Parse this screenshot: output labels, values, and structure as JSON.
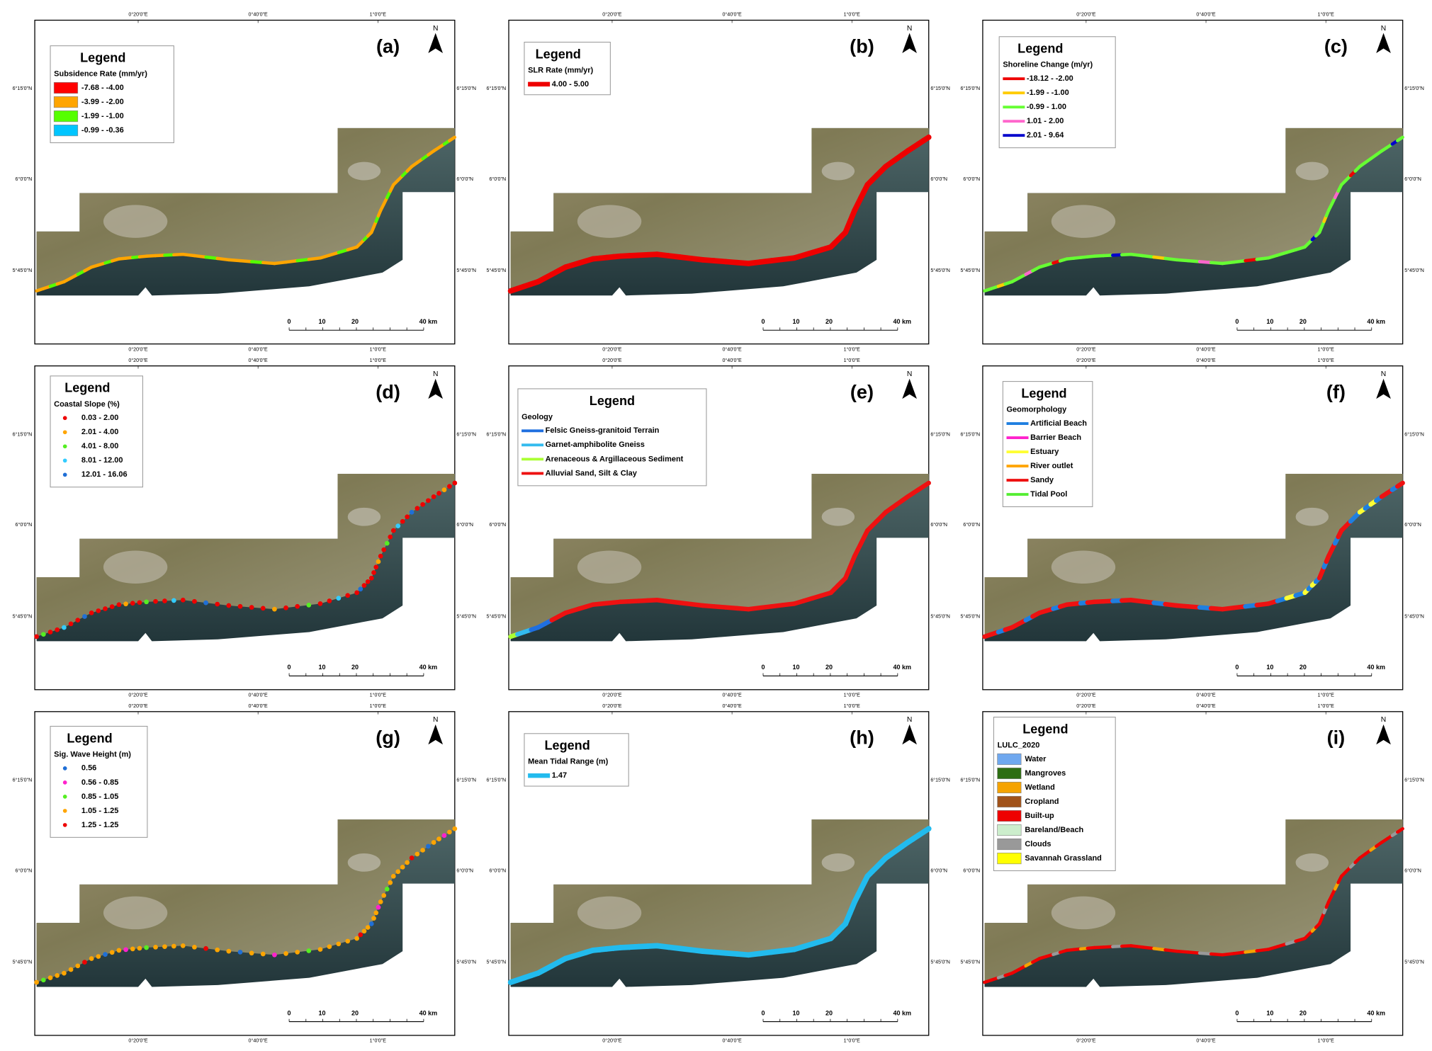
{
  "north": "N",
  "lon_labels": [
    "0°20'0\"E",
    "0°40'0\"E",
    "1°0'0\"E"
  ],
  "lat_labels": [
    "6°15'0\"N",
    "6°0'0\"N",
    "5°45'0\"N"
  ],
  "scale_labels": [
    "0",
    "10",
    "20",
    "40 km"
  ],
  "panels": [
    {
      "label": "(a)",
      "legend_title": "Legend",
      "legend_subtitle": "Subsidence Rate (mm/yr)",
      "items": [
        {
          "label": "-7.68 - -4.00",
          "color": "#ff0000"
        },
        {
          "label": "-3.99 - -2.00",
          "color": "#ffa500"
        },
        {
          "label": "-1.99 - -1.00",
          "color": "#55ff00"
        },
        {
          "label": "-0.99 - -0.36",
          "color": "#00c5ff"
        }
      ]
    },
    {
      "label": "(b)",
      "legend_title": "Legend",
      "legend_subtitle": "SLR Rate (mm/yr)",
      "items": [
        {
          "label": "4.00 - 5.00",
          "color": "#ee0000"
        }
      ]
    },
    {
      "label": "(c)",
      "legend_title": "Legend",
      "legend_subtitle": "Shoreline Change (m/yr)",
      "items": [
        {
          "label": "-18.12 - -2.00",
          "color": "#ee0000"
        },
        {
          "label": "-1.99 - -1.00",
          "color": "#ffcc00"
        },
        {
          "label": "-0.99 - 1.00",
          "color": "#66ff33"
        },
        {
          "label": "1.01 - 2.00",
          "color": "#ff66cc"
        },
        {
          "label": "2.01 - 9.64",
          "color": "#0000cc"
        }
      ]
    },
    {
      "label": "(d)",
      "legend_title": "Legend",
      "legend_subtitle": "Coastal Slope (%)",
      "items": [
        {
          "label": "0.03 - 2.00",
          "color": "#ee0000"
        },
        {
          "label": "2.01 - 4.00",
          "color": "#ffa500"
        },
        {
          "label": "4.01 - 8.00",
          "color": "#55ee22"
        },
        {
          "label": "8.01 - 12.00",
          "color": "#33ccff"
        },
        {
          "label": "12.01 - 16.06",
          "color": "#1f6fd6"
        }
      ]
    },
    {
      "label": "(e)",
      "legend_title": "Legend",
      "legend_subtitle": "Geology",
      "items": [
        {
          "label": "Felsic Gneiss-granitoid Terrain",
          "color": "#1f6fe0"
        },
        {
          "label": "Garnet-amphibolite Gneiss",
          "color": "#33bbee"
        },
        {
          "label": "Arenaceous & Argillaceous Sediment",
          "color": "#aaff33"
        },
        {
          "label": "Alluvial Sand, Silt & Clay",
          "color": "#ee1111"
        }
      ]
    },
    {
      "label": "(f)",
      "legend_title": "Legend",
      "legend_subtitle": "Geomorphology",
      "items": [
        {
          "label": "Artificial Beach",
          "color": "#1f7fe0"
        },
        {
          "label": "Barrier Beach",
          "color": "#ff22cc"
        },
        {
          "label": "Estuary",
          "color": "#ffff33"
        },
        {
          "label": "River outlet",
          "color": "#ffa500"
        },
        {
          "label": "Sandy",
          "color": "#ee1111"
        },
        {
          "label": "Tidal Pool",
          "color": "#55ee33"
        }
      ]
    },
    {
      "label": "(g)",
      "legend_title": "Legend",
      "legend_subtitle": "Sig. Wave Height (m)",
      "items": [
        {
          "label": "0.56",
          "color": "#1f6fd6"
        },
        {
          "label": "0.56 - 0.85",
          "color": "#ff22cc"
        },
        {
          "label": "0.85 - 1.05",
          "color": "#55ee22"
        },
        {
          "label": "1.05 - 1.25",
          "color": "#ffa500"
        },
        {
          "label": "1.25 - 1.25",
          "color": "#ee0000"
        }
      ]
    },
    {
      "label": "(h)",
      "legend_title": "Legend",
      "legend_subtitle": "Mean Tidal Range (m)",
      "items": [
        {
          "label": "1.47",
          "color": "#22bbee"
        }
      ]
    },
    {
      "label": "(i)",
      "legend_title": "Legend",
      "legend_subtitle": "LULC_2020",
      "items": [
        {
          "label": "Water",
          "color": "#6fa8ef"
        },
        {
          "label": "Mangroves",
          "color": "#2d6e12"
        },
        {
          "label": "Wetland",
          "color": "#f5a300"
        },
        {
          "label": "Cropland",
          "color": "#a0521a"
        },
        {
          "label": "Built-up",
          "color": "#ee0000"
        },
        {
          "label": "Bareland/Beach",
          "color": "#cceecc"
        },
        {
          "label": "Clouds",
          "color": "#999999"
        },
        {
          "label": "Savannah Grassland",
          "color": "#ffff00"
        }
      ]
    }
  ]
}
